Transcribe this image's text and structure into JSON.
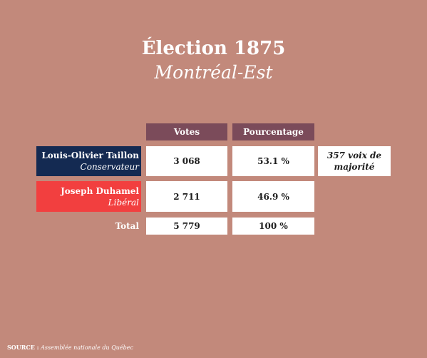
{
  "header": {
    "title": "Élection 1875",
    "subtitle": "Montréal-Est"
  },
  "table": {
    "columns": [
      "Votes",
      "Pourcentage"
    ],
    "candidates": [
      {
        "name": "Louis-Olivier Taillon",
        "party": "Conservateur",
        "votes": "3 068",
        "percent": "53.1 %",
        "color": "#142a52"
      },
      {
        "name": "Joseph Duhamel",
        "party": "Libéral",
        "votes": "2 711",
        "percent": "46.9 %",
        "color": "#f23f3f"
      }
    ],
    "note": "357 voix de majorité",
    "total": {
      "label": "Total",
      "votes": "5 779",
      "percent": "100 %"
    }
  },
  "source": {
    "label": "SOURCE :",
    "value": "Assemblée nationale du Québec"
  },
  "colors": {
    "background": "#c2897b",
    "header_cell": "#7b4b5a"
  }
}
